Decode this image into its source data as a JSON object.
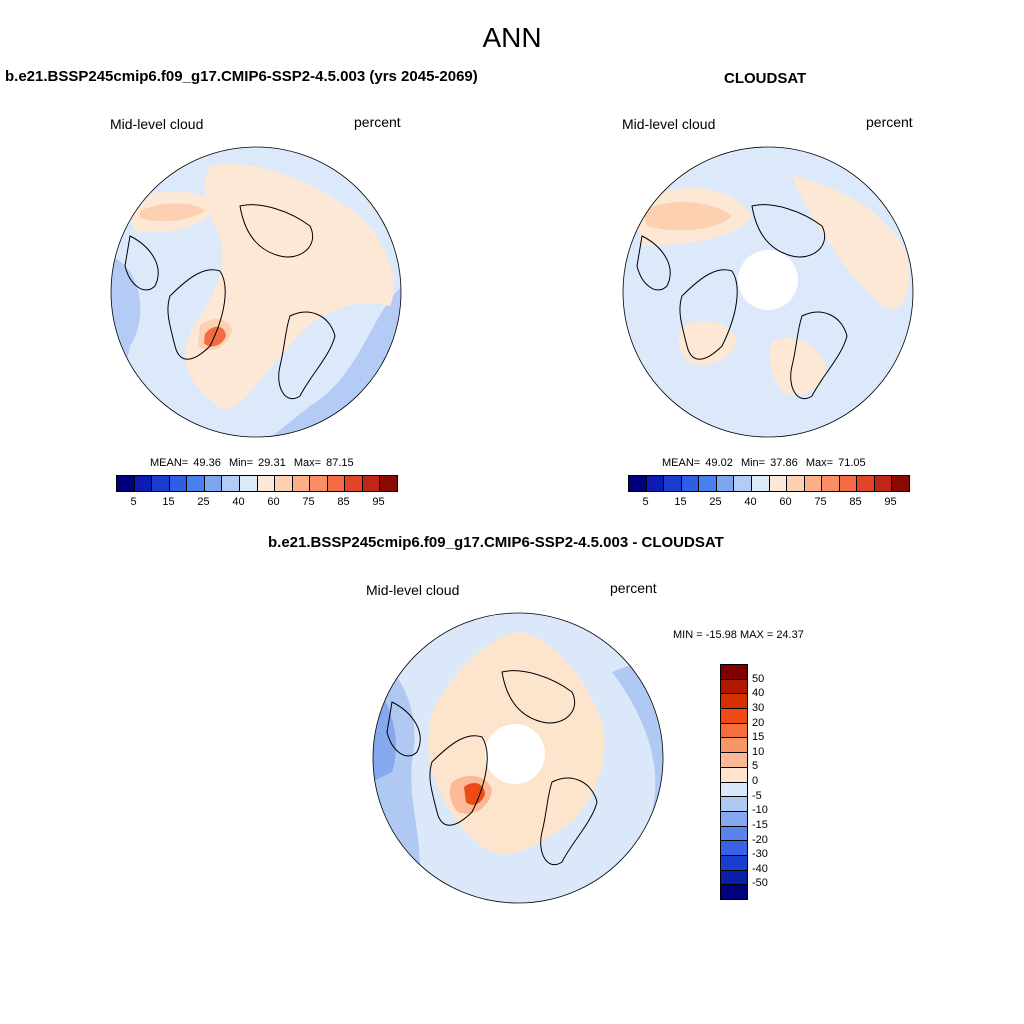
{
  "title": "ANN",
  "panels": {
    "left": {
      "case_title": "b.e21.BSSP245cmip6.f09_g17.CMIP6-SSP2-4.5.003 (yrs 2045-2069)",
      "variable": "Mid-level cloud",
      "units": "percent",
      "stats": {
        "mean_label": "MEAN=",
        "mean": "49.36",
        "min_label": "Min=",
        "min": "29.31",
        "max_label": "Max=",
        "max": "87.15"
      }
    },
    "right": {
      "case_title": "CLOUDSAT",
      "variable": "Mid-level cloud",
      "units": "percent",
      "stats": {
        "mean_label": "MEAN=",
        "mean": "49.02",
        "min_label": "Min=",
        "min": "37.86",
        "max_label": "Max=",
        "max": "71.05"
      }
    },
    "diff": {
      "case_title": "b.e21.BSSP245cmip6.f09_g17.CMIP6-SSP2-4.5.003 - CLOUDSAT",
      "variable": "Mid-level cloud",
      "units": "percent",
      "minmax": "MIN = -15.98 MAX =  24.37"
    }
  },
  "colorbar_abs": {
    "colors": [
      "#00007f",
      "#0d1bb3",
      "#1a3ccf",
      "#2c5ee8",
      "#4a7ff0",
      "#7ea5f2",
      "#b4cbf5",
      "#dce9fb",
      "#fde8d6",
      "#fcd0b0",
      "#fbae88",
      "#f98e66",
      "#f46a44",
      "#e0452a",
      "#c02614",
      "#8a0a00"
    ],
    "labels": [
      "5",
      "15",
      "25",
      "40",
      "60",
      "75",
      "85",
      "95"
    ]
  },
  "colorbar_diff": {
    "colors": [
      "#7f0000",
      "#b01800",
      "#d53000",
      "#ee4a16",
      "#f56f3c",
      "#f8966a",
      "#fbb995",
      "#fde4cc",
      "#dbe8fa",
      "#b0c9f3",
      "#86a8ee",
      "#5b84ea",
      "#3863e4",
      "#1a3fce",
      "#0a1fa8",
      "#000080"
    ],
    "labels": [
      "50",
      "40",
      "30",
      "20",
      "15",
      "10",
      "5",
      "0",
      "-5",
      "-10",
      "-15",
      "-20",
      "-30",
      "-40",
      "-50"
    ]
  },
  "map_colors": {
    "abs_background": "#dce9fb",
    "abs_warm": "#fde8d6",
    "abs_warm2": "#fcd0b0",
    "abs_hot": "#f46a44",
    "abs_cool": "#b4cbf5",
    "pole_hole": "#ffffff",
    "diff_background": "#dbe8fa",
    "diff_warm": "#fde4cc",
    "diff_warm2": "#fbb995",
    "diff_hot": "#ee4a16",
    "diff_cool": "#b0c9f3",
    "diff_cooler": "#86a8ee"
  }
}
